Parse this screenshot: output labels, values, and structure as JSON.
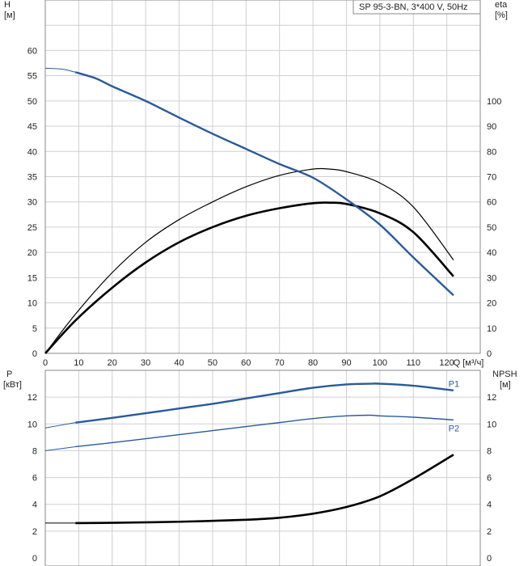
{
  "chart_data": [
    {
      "type": "line",
      "title": "SP 95-3-BN, 3*400 V, 50Hz",
      "xlabel": "Q [м³/ч]",
      "ylabel_left": "H\n[м]",
      "ylabel_right": "eta\n[%]",
      "xlim": [
        0,
        130
      ],
      "ylim_left": [
        0,
        70
      ],
      "ylim_right": [
        0,
        140
      ],
      "x_ticks": [
        "0",
        "10",
        "20",
        "30",
        "40",
        "50",
        "60",
        "70",
        "80",
        "90",
        "100",
        "110",
        "120"
      ],
      "y_ticks_left": [
        "0",
        "5",
        "10",
        "15",
        "20",
        "25",
        "30",
        "35",
        "40",
        "45",
        "50",
        "55",
        "60"
      ],
      "y_ticks_right": [
        "0",
        "10",
        "20",
        "30",
        "40",
        "50",
        "60",
        "70",
        "80",
        "90",
        "100"
      ],
      "grid": true,
      "series": [
        {
          "key": "H",
          "axis": "left",
          "color": "#2a5a9a",
          "x": [
            0,
            5,
            9,
            15,
            20,
            30,
            40,
            50,
            60,
            70,
            80,
            90,
            100,
            110,
            122
          ],
          "y": [
            56.5,
            56.3,
            55.7,
            54.5,
            52.9,
            50.0,
            46.7,
            43.5,
            40.5,
            37.5,
            34.8,
            30.5,
            25.5,
            19.0,
            11.5
          ],
          "thin_until": 9
        },
        {
          "key": "eta",
          "axis": "right",
          "color": "#000000",
          "x": [
            0,
            9,
            20,
            30,
            40,
            50,
            60,
            70,
            80,
            85,
            90,
            100,
            110,
            122
          ],
          "y": [
            0,
            15.5,
            32,
            44,
            53,
            60,
            66,
            70.5,
            73,
            73,
            72,
            67.5,
            58,
            37
          ]
        },
        {
          "key": "eta_total",
          "axis": "right",
          "color": "#000000",
          "x": [
            0,
            9,
            20,
            30,
            40,
            50,
            60,
            70,
            80,
            85,
            90,
            100,
            110,
            122
          ],
          "y": [
            0,
            13,
            26,
            36,
            44,
            50,
            54.5,
            57.5,
            59.5,
            59.7,
            59.2,
            55.5,
            48,
            30.5
          ]
        }
      ]
    },
    {
      "type": "line",
      "xlim": [
        0,
        130
      ],
      "ylabel_left": "P\n[кВт]",
      "ylabel_right": "NPSH\n[м]",
      "ylim_left": [
        0,
        14
      ],
      "ylim_right": [
        0,
        14
      ],
      "y_ticks_left": [
        "0",
        "2",
        "4",
        "6",
        "8",
        "10",
        "12"
      ],
      "y_ticks_right": [
        "0",
        "2",
        "4",
        "6",
        "8",
        "10",
        "12"
      ],
      "grid": true,
      "series": [
        {
          "name": "P1",
          "axis": "left",
          "color": "#2a5a9a",
          "x": [
            0,
            9,
            20,
            30,
            40,
            50,
            60,
            70,
            80,
            90,
            97,
            100,
            110,
            122
          ],
          "y": [
            9.7,
            10.1,
            10.45,
            10.8,
            11.15,
            11.5,
            11.9,
            12.3,
            12.7,
            12.95,
            13.0,
            13.0,
            12.85,
            12.5
          ],
          "thin_until": 9
        },
        {
          "name": "P2",
          "axis": "left",
          "color": "#2a5a9a",
          "x": [
            0,
            9,
            20,
            30,
            40,
            50,
            60,
            70,
            80,
            90,
            97,
            100,
            110,
            122
          ],
          "y": [
            8.0,
            8.3,
            8.6,
            8.9,
            9.2,
            9.5,
            9.8,
            10.1,
            10.4,
            10.6,
            10.65,
            10.6,
            10.5,
            10.3
          ],
          "thin_until": 9
        },
        {
          "key": "NPSH",
          "axis": "right",
          "color": "#000000",
          "x": [
            0,
            9,
            20,
            40,
            60,
            70,
            80,
            90,
            100,
            110,
            122
          ],
          "y": [
            2.6,
            2.6,
            2.62,
            2.7,
            2.85,
            3.0,
            3.3,
            3.8,
            4.6,
            5.9,
            7.7
          ],
          "thin_until": 9
        }
      ]
    }
  ]
}
